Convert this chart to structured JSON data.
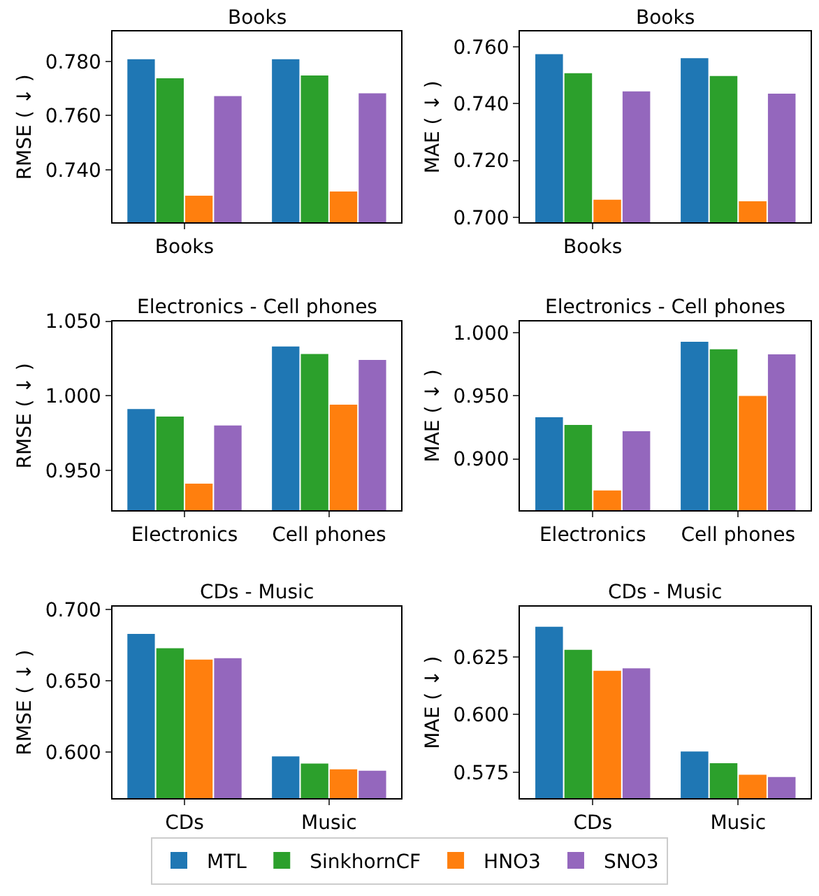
{
  "chart_data": [
    {
      "type": "bar",
      "title": "Books",
      "ylabel": "RMSE ( ↓ )",
      "categories": [
        "Books",
        null
      ],
      "ylim": [
        0.7205,
        0.791
      ],
      "yticks": [
        {
          "value": 0.74,
          "label": "0.740"
        },
        {
          "value": 0.76,
          "label": "0.760"
        },
        {
          "value": 0.78,
          "label": "0.780"
        }
      ],
      "legend": "bottom",
      "grid": false,
      "series": [
        {
          "name": "MTL",
          "color": "#1f77b4",
          "values": [
            0.7808,
            0.7808
          ]
        },
        {
          "name": "SinkhornCF",
          "color": "#2ca02c",
          "values": [
            0.7738,
            0.7748
          ]
        },
        {
          "name": "HNO3",
          "color": "#ff7f0e",
          "values": [
            0.7304,
            0.7319
          ]
        },
        {
          "name": "SNO3",
          "color": "#9467bd",
          "values": [
            0.7672,
            0.7682
          ]
        }
      ]
    },
    {
      "type": "bar",
      "title": "Books",
      "ylabel": "MAE ( ↓ )",
      "categories": [
        "Books",
        null
      ],
      "ylim": [
        0.6982,
        0.7653
      ],
      "yticks": [
        {
          "value": 0.7,
          "label": "0.700"
        },
        {
          "value": 0.72,
          "label": "0.720"
        },
        {
          "value": 0.74,
          "label": "0.740"
        },
        {
          "value": 0.76,
          "label": "0.760"
        }
      ],
      "grid": false,
      "series": [
        {
          "color": "#1f77b4",
          "values": [
            0.7574,
            0.756
          ]
        },
        {
          "color": "#2ca02c",
          "values": [
            0.7507,
            0.7497
          ]
        },
        {
          "color": "#ff7f0e",
          "values": [
            0.7062,
            0.7056
          ]
        },
        {
          "color": "#9467bd",
          "values": [
            0.7443,
            0.7435
          ]
        }
      ]
    },
    {
      "type": "bar",
      "title": "Electronics - Cell phones",
      "ylabel": "RMSE ( ↓ )",
      "categories": [
        "Electronics",
        "Cell phones"
      ],
      "ylim": [
        0.923,
        1.05
      ],
      "yticks": [
        {
          "value": 0.95,
          "label": "0.950"
        },
        {
          "value": 1.0,
          "label": "1.000"
        },
        {
          "value": 1.05,
          "label": "1.050"
        }
      ],
      "grid": false,
      "series": [
        {
          "color": "#1f77b4",
          "values": [
            0.991,
            1.033
          ]
        },
        {
          "color": "#2ca02c",
          "values": [
            0.986,
            1.028
          ]
        },
        {
          "color": "#ff7f0e",
          "values": [
            0.941,
            0.994
          ]
        },
        {
          "color": "#9467bd",
          "values": [
            0.98,
            1.024
          ]
        }
      ]
    },
    {
      "type": "bar",
      "title": "Electronics - Cell phones",
      "ylabel": "MAE ( ↓ )",
      "categories": [
        "Electronics",
        "Cell phones"
      ],
      "ylim": [
        0.8591,
        1.0093
      ],
      "yticks": [
        {
          "value": 0.9,
          "label": "0.900"
        },
        {
          "value": 0.95,
          "label": "0.950"
        },
        {
          "value": 1.0,
          "label": "1.000"
        }
      ],
      "grid": false,
      "series": [
        {
          "color": "#1f77b4",
          "values": [
            0.933,
            0.993
          ]
        },
        {
          "color": "#2ca02c",
          "values": [
            0.927,
            0.987
          ]
        },
        {
          "color": "#ff7f0e",
          "values": [
            0.875,
            0.95
          ]
        },
        {
          "color": "#9467bd",
          "values": [
            0.922,
            0.983
          ]
        }
      ]
    },
    {
      "type": "bar",
      "title": "CDs - Music",
      "ylabel": "RMSE ( ↓ )",
      "categories": [
        "CDs",
        "Music"
      ],
      "ylim": [
        0.5675,
        0.7023
      ],
      "yticks": [
        {
          "value": 0.6,
          "label": "0.600"
        },
        {
          "value": 0.65,
          "label": "0.650"
        },
        {
          "value": 0.7,
          "label": "0.700"
        }
      ],
      "grid": false,
      "series": [
        {
          "color": "#1f77b4",
          "values": [
            0.683,
            0.597
          ]
        },
        {
          "color": "#2ca02c",
          "values": [
            0.673,
            0.592
          ]
        },
        {
          "color": "#ff7f0e",
          "values": [
            0.665,
            0.588
          ]
        },
        {
          "color": "#9467bd",
          "values": [
            0.666,
            0.587
          ]
        }
      ]
    },
    {
      "type": "bar",
      "title": "CDs - Music",
      "ylabel": "MAE ( ↓ )",
      "categories": [
        "CDs",
        "Music"
      ],
      "ylim": [
        0.5637,
        0.6468
      ],
      "yticks": [
        {
          "value": 0.575,
          "label": "0.575"
        },
        {
          "value": 0.6,
          "label": "0.600"
        },
        {
          "value": 0.625,
          "label": "0.625"
        }
      ],
      "grid": false,
      "series": [
        {
          "color": "#1f77b4",
          "values": [
            0.638,
            0.584
          ]
        },
        {
          "color": "#2ca02c",
          "values": [
            0.628,
            0.579
          ]
        },
        {
          "color": "#ff7f0e",
          "values": [
            0.619,
            0.574
          ]
        },
        {
          "color": "#9467bd",
          "values": [
            0.62,
            0.573
          ]
        }
      ]
    }
  ]
}
